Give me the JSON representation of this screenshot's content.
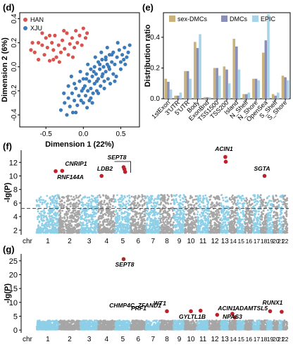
{
  "panels": {
    "d": "(d)",
    "e": "(e)",
    "f": "(f)",
    "g": "(g)"
  },
  "chart_data": [
    {
      "type": "scatter",
      "panel": "d",
      "xlabel": "Dimension 1 (22%)",
      "ylabel": "Dimension 2 (6%)",
      "xlim": [
        -0.85,
        0.75
      ],
      "ylim": [
        -0.5,
        0.45
      ],
      "xticks": [
        "-0.5",
        "0.0",
        "0.5"
      ],
      "xtick_values": [
        -0.5,
        0.0,
        0.5
      ],
      "yticks": [
        "-0.4",
        "-0.2",
        "0.0",
        "0.2",
        "0.4"
      ],
      "ytick_values": [
        -0.4,
        -0.2,
        0.0,
        0.2,
        0.4
      ],
      "legend_position": "top-left",
      "series": [
        {
          "name": "HAN",
          "color": "#d9534f",
          "points": [
            [
              -0.7,
              0.14
            ],
            [
              -0.65,
              0.12
            ],
            [
              -0.6,
              0.2
            ],
            [
              -0.55,
              0.18
            ],
            [
              -0.52,
              0.1
            ],
            [
              -0.5,
              0.24
            ],
            [
              -0.48,
              0.16
            ],
            [
              -0.45,
              0.05
            ],
            [
              -0.42,
              0.2
            ],
            [
              -0.4,
              0.14
            ],
            [
              -0.38,
              0.26
            ],
            [
              -0.36,
              0.08
            ],
            [
              -0.33,
              0.18
            ],
            [
              -0.3,
              0.12
            ],
            [
              -0.28,
              0.22
            ],
            [
              -0.25,
              0.15
            ],
            [
              -0.22,
              0.28
            ],
            [
              -0.2,
              0.1
            ],
            [
              -0.18,
              0.19
            ],
            [
              -0.15,
              0.24
            ],
            [
              -0.12,
              0.16
            ],
            [
              -0.1,
              0.3
            ],
            [
              -0.08,
              0.2
            ],
            [
              -0.05,
              0.26
            ],
            [
              -0.02,
              0.18
            ],
            [
              0.0,
              0.32
            ],
            [
              0.03,
              0.24
            ],
            [
              -0.6,
              0.06
            ],
            [
              -0.45,
              0.26
            ],
            [
              -0.32,
              0.04
            ],
            [
              -0.26,
              0.3
            ],
            [
              -0.14,
              0.08
            ],
            [
              -0.55,
              0.28
            ],
            [
              -0.68,
              0.2
            ],
            [
              -0.4,
              0.06
            ],
            [
              0.05,
              0.28
            ]
          ]
        },
        {
          "name": "XJU",
          "color": "#3d7ab8",
          "points": [
            [
              -0.3,
              -0.36
            ],
            [
              -0.25,
              -0.3
            ],
            [
              -0.22,
              -0.4
            ],
            [
              -0.2,
              -0.26
            ],
            [
              -0.18,
              -0.33
            ],
            [
              -0.15,
              -0.22
            ],
            [
              -0.14,
              -0.38
            ],
            [
              -0.12,
              -0.28
            ],
            [
              -0.1,
              -0.18
            ],
            [
              -0.08,
              -0.32
            ],
            [
              -0.06,
              -0.24
            ],
            [
              -0.05,
              -0.12
            ],
            [
              -0.03,
              -0.28
            ],
            [
              -0.02,
              -0.2
            ],
            [
              0.0,
              -0.1
            ],
            [
              0.0,
              -0.3
            ],
            [
              0.02,
              -0.16
            ],
            [
              0.03,
              -0.24
            ],
            [
              0.05,
              -0.06
            ],
            [
              0.06,
              -0.2
            ],
            [
              0.08,
              -0.12
            ],
            [
              0.08,
              -0.28
            ],
            [
              0.1,
              -0.02
            ],
            [
              0.1,
              -0.18
            ],
            [
              0.12,
              -0.08
            ],
            [
              0.13,
              -0.22
            ],
            [
              0.15,
              0.0
            ],
            [
              0.15,
              -0.14
            ],
            [
              0.17,
              -0.06
            ],
            [
              0.18,
              -0.2
            ],
            [
              0.2,
              0.04
            ],
            [
              0.2,
              -0.1
            ],
            [
              0.22,
              -0.02
            ],
            [
              0.23,
              -0.16
            ],
            [
              0.25,
              0.06
            ],
            [
              0.25,
              -0.08
            ],
            [
              0.27,
              0.0
            ],
            [
              0.28,
              -0.12
            ],
            [
              0.3,
              0.08
            ],
            [
              0.3,
              -0.04
            ],
            [
              0.32,
              0.02
            ],
            [
              0.33,
              -0.1
            ],
            [
              0.35,
              0.1
            ],
            [
              0.35,
              -0.02
            ],
            [
              0.38,
              0.04
            ],
            [
              0.4,
              0.12
            ],
            [
              0.4,
              -0.06
            ],
            [
              0.42,
              0.02
            ],
            [
              0.45,
              0.08
            ],
            [
              0.48,
              0.14
            ],
            [
              0.5,
              0.04
            ],
            [
              0.52,
              0.1
            ],
            [
              0.55,
              0.16
            ],
            [
              0.58,
              0.08
            ],
            [
              0.6,
              0.12
            ],
            [
              -0.2,
              -0.16
            ],
            [
              -0.1,
              -0.38
            ],
            [
              0.05,
              -0.34
            ],
            [
              0.12,
              -0.3
            ],
            [
              0.2,
              -0.22
            ],
            [
              0.28,
              -0.18
            ],
            [
              0.36,
              -0.14
            ],
            [
              0.44,
              -0.08
            ],
            [
              -0.04,
              -0.04
            ],
            [
              0.06,
              0.02
            ],
            [
              0.16,
              0.08
            ],
            [
              0.24,
              0.12
            ],
            [
              0.32,
              0.16
            ],
            [
              0.46,
              0.2
            ],
            [
              0.62,
              0.18
            ],
            [
              -0.16,
              -0.08
            ],
            [
              0.0,
              -0.18
            ],
            [
              0.1,
              -0.26
            ],
            [
              0.18,
              -0.12
            ],
            [
              0.26,
              -0.06
            ],
            [
              0.34,
              0.0
            ],
            [
              0.42,
              -0.12
            ],
            [
              0.5,
              -0.02
            ],
            [
              0.56,
              0.02
            ],
            [
              -0.26,
              -0.22
            ],
            [
              -0.12,
              -0.14
            ],
            [
              0.04,
              -0.1
            ],
            [
              0.14,
              -0.04
            ],
            [
              0.22,
              0.02
            ],
            [
              0.3,
              0.06
            ],
            [
              0.38,
              0.1
            ],
            [
              0.54,
              0.06
            ]
          ]
        }
      ]
    },
    {
      "type": "bar",
      "panel": "e",
      "ylabel": "Distribution ratio",
      "ylim": [
        0,
        0.56
      ],
      "yticks": [
        "0.0",
        "0.2",
        "0.4"
      ],
      "ytick_values": [
        0.0,
        0.2,
        0.4
      ],
      "legend_position": "top",
      "categories": [
        "1stExon",
        "3'UTR",
        "5'UTR",
        "Body",
        "ExonBnd",
        "TSS1500",
        "TSS200",
        "Island",
        "N_Shelf",
        "N_Shore",
        "OpenSea",
        "S_Shelf",
        "S_Shore"
      ],
      "series": [
        {
          "name": "sex-DMCs",
          "color": "#c9b27c",
          "values": [
            0.13,
            0.02,
            0.18,
            0.37,
            0.01,
            0.2,
            0.21,
            0.39,
            0.03,
            0.13,
            0.3,
            0.03,
            0.15
          ]
        },
        {
          "name": "DMCs",
          "color": "#8b8fb8",
          "values": [
            0.11,
            0.02,
            0.18,
            0.33,
            0.01,
            0.2,
            0.19,
            0.34,
            0.03,
            0.13,
            0.38,
            0.02,
            0.14
          ]
        },
        {
          "name": "EPIC",
          "color": "#a8d4ea",
          "values": [
            0.06,
            0.04,
            0.13,
            0.42,
            0.01,
            0.15,
            0.1,
            0.19,
            0.04,
            0.12,
            0.55,
            0.04,
            0.12
          ]
        }
      ]
    },
    {
      "type": "scatter",
      "panel": "f",
      "subtype": "manhattan",
      "ylabel": "-lg(P)",
      "ylim": [
        1.3,
        13.8
      ],
      "yticks": [
        "2",
        "4",
        "6",
        "8",
        "10",
        "12"
      ],
      "ytick_values": [
        2,
        4,
        6,
        8,
        10,
        12
      ],
      "threshold": 5.2,
      "xlabel": "chr",
      "chromosomes": [
        "1",
        "2",
        "3",
        "4",
        "5",
        "6",
        "7",
        "8",
        "9",
        "10",
        "11",
        "12",
        "13",
        "14",
        "15",
        "16",
        "17",
        "18",
        "19",
        "20",
        "21",
        "22"
      ],
      "chr_ticks_shown": [
        "chr",
        "1",
        "2",
        "3",
        "4",
        "5",
        "6",
        "7",
        "8",
        "9",
        "10",
        "11",
        "12",
        "13",
        "14",
        "15",
        "16",
        "17",
        "18",
        "19",
        "20",
        "21",
        "22"
      ],
      "chr_colors": [
        "#8ecfe8",
        "#a6a6a6"
      ],
      "baseline_low": 1.6,
      "baseline_high": 7.2,
      "highlights": [
        {
          "chr": 1,
          "pos": 0.85,
          "y": 10.7,
          "label": "CNRIP1"
        },
        {
          "chr": 2,
          "pos": 0.15,
          "y": 10.75,
          "label": "RNF144A"
        },
        {
          "chr": 4,
          "pos": 0.2,
          "y": 10.0,
          "label": "LDB2"
        },
        {
          "chr": 5,
          "pos": 0.55,
          "y": 11.3,
          "label": "SEPT8"
        },
        {
          "chr": 5,
          "pos": 0.6,
          "y": 11.0,
          "label": ""
        },
        {
          "chr": 5,
          "pos": 0.65,
          "y": 10.6,
          "label": ""
        },
        {
          "chr": 13,
          "pos": 0.55,
          "y": 12.8,
          "label": "ACIN1"
        },
        {
          "chr": 13,
          "pos": 0.6,
          "y": 12.1,
          "label": ""
        },
        {
          "chr": 18,
          "pos": 0.6,
          "y": 10.0,
          "label": "SGTA"
        }
      ]
    },
    {
      "type": "scatter",
      "panel": "g",
      "subtype": "manhattan",
      "ylabel": "-lg(P)",
      "ylim": [
        -1,
        27.5
      ],
      "yticks": [
        "0",
        "5",
        "10",
        "15",
        "20",
        "25"
      ],
      "ytick_values": [
        0,
        5,
        10,
        15,
        20,
        25
      ],
      "xlabel": "chr",
      "chromosomes": [
        "1",
        "2",
        "3",
        "4",
        "5",
        "6",
        "7",
        "8",
        "9",
        "10",
        "11",
        "12",
        "13",
        "14",
        "15",
        "16",
        "17",
        "18",
        "19",
        "20",
        "21",
        "22"
      ],
      "chr_ticks_shown": [
        "chr",
        "1",
        "2",
        "3",
        "4",
        "5",
        "6",
        "7",
        "8",
        "9",
        "10",
        "11",
        "12",
        "13",
        "14",
        "15",
        "16",
        "17",
        "18",
        "19",
        "20",
        "21",
        "22"
      ],
      "chr_colors": [
        "#8ecfe8",
        "#a6a6a6"
      ],
      "baseline_low": 0.2,
      "baseline_high": 3.5,
      "highlights": [
        {
          "chr": 5,
          "pos": 0.55,
          "y": 25.6,
          "label": "SEPT8"
        },
        {
          "chr": 8,
          "pos": 0.5,
          "y": 6.8,
          "label": "CHMP4C, ZFAND1"
        },
        {
          "chr": 10,
          "pos": 0.5,
          "y": 6.8,
          "label": "PRF1"
        },
        {
          "chr": 11,
          "pos": 0.3,
          "y": 7.0,
          "label": "WT1"
        },
        {
          "chr": 12,
          "pos": 0.7,
          "y": 5.5,
          "label": "GYLTL1B"
        },
        {
          "chr": 14,
          "pos": 0.4,
          "y": 5.9,
          "label": "ACIN1"
        },
        {
          "chr": 14,
          "pos": 0.7,
          "y": 4.6,
          "label": "NPAS3"
        },
        {
          "chr": 19,
          "pos": 0.5,
          "y": 6.8,
          "label": "ADAMTSL5"
        },
        {
          "chr": 21,
          "pos": 0.7,
          "y": 6.6,
          "label": "RUNX1"
        }
      ]
    }
  ]
}
